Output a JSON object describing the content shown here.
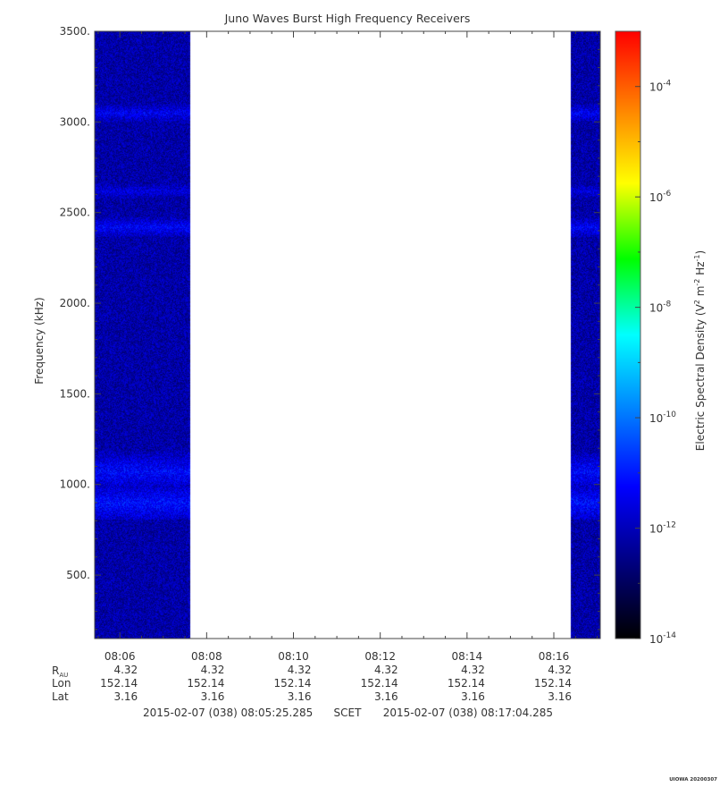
{
  "chart_data": {
    "type": "heatmap",
    "title": "Juno Waves Burst High Frequency Receivers",
    "ylabel": "Frequency (kHz)",
    "ylim": [
      150,
      3500
    ],
    "y_ticks": [
      "3500.",
      "3000.",
      "2500.",
      "2000.",
      "1500.",
      "1000.",
      "500."
    ],
    "y_tick_values": [
      3500,
      3000,
      2500,
      2000,
      1500,
      1000,
      500
    ],
    "x_tick_labels": [
      "08:06",
      "08:08",
      "08:10",
      "08:12",
      "08:14",
      "08:16"
    ],
    "x_tick_minutes": [
      6,
      8,
      10,
      12,
      14,
      16
    ],
    "x_range_minutes": [
      5.42,
      17.07
    ],
    "data_segments_minutes": [
      [
        5.42,
        7.62
      ],
      [
        16.38,
        17.07
      ]
    ],
    "ephemeris": {
      "row_labels": {
        "rau_main": "R",
        "rau_sub": "AU",
        "lon": "Lon",
        "lat": "Lat"
      },
      "rau": [
        "4.32",
        "4.32",
        "4.32",
        "4.32",
        "4.32",
        "4.32"
      ],
      "lon": [
        "152.14",
        "152.14",
        "152.14",
        "152.14",
        "152.14",
        "152.14"
      ],
      "lat": [
        "3.16",
        "3.16",
        "3.16",
        "3.16",
        "3.16",
        "3.16"
      ]
    },
    "time_span": {
      "start": "2015-02-07 (038) 08:05:25.285",
      "label": "SCET",
      "end": "2015-02-07 (038) 08:17:04.285"
    },
    "colorbar": {
      "label": "Electric Spectral Density (V2 m-2 Hz-1)",
      "scale": "log",
      "range": [
        1e-14,
        0.001
      ],
      "tick_exponents": [
        "-4",
        "-6",
        "-8",
        "-10",
        "-12",
        "-14"
      ],
      "tick_values": [
        -4,
        -6,
        -8,
        -10,
        -12,
        -14
      ],
      "colors": [
        "#000000",
        "#000080",
        "#0000ff",
        "#0080ff",
        "#00ffff",
        "#00ff00",
        "#ffff00",
        "#ff8000",
        "#ff0000"
      ]
    },
    "spectral_features": [
      {
        "freq": 3050,
        "log_level": -11.4
      },
      {
        "freq": 2620,
        "log_level": -11.6
      },
      {
        "freq": 2420,
        "log_level": -11.3
      },
      {
        "freq": 1100,
        "log_level": -11.4
      },
      {
        "freq": 1070,
        "log_level": -11.2
      },
      {
        "freq": 900,
        "log_level": -11.1
      }
    ],
    "background_log_level": -12.2
  },
  "footer": {
    "stamp": "UIOWA 20200307"
  }
}
